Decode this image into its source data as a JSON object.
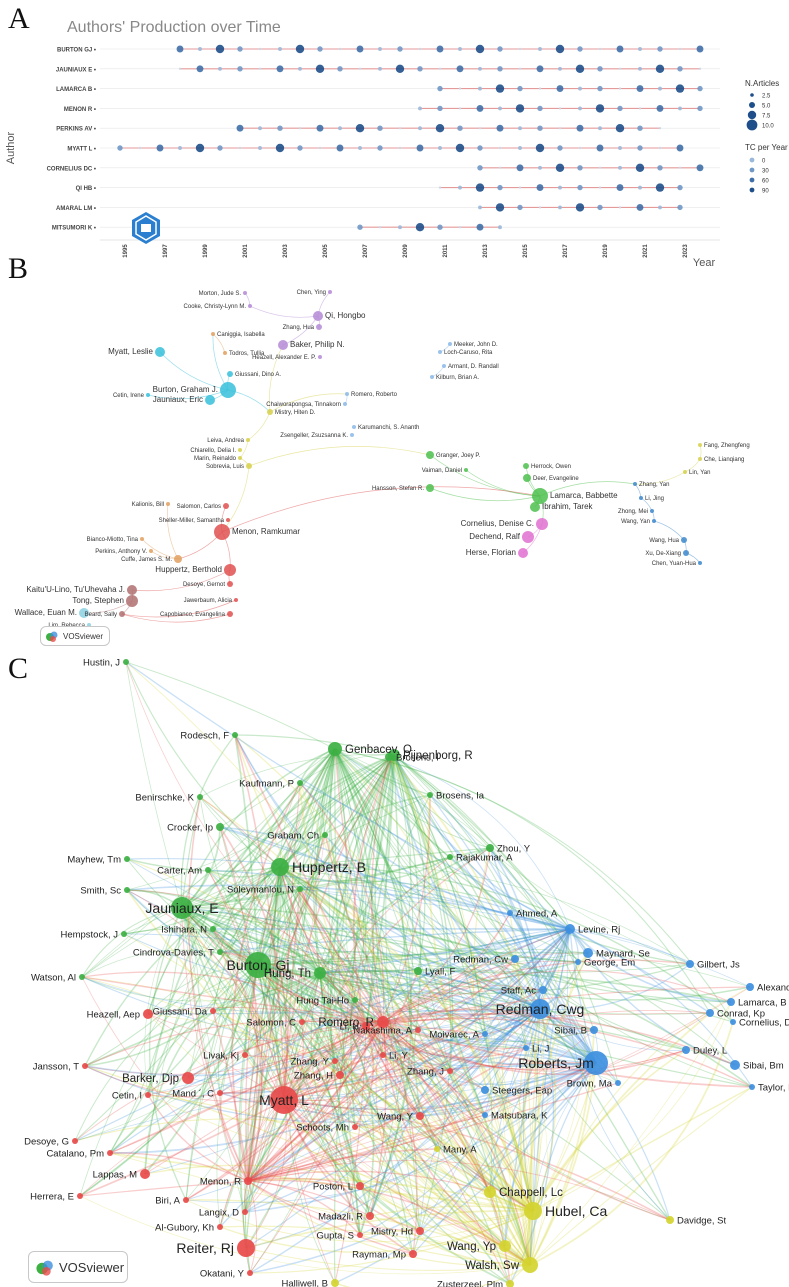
{
  "panels": {
    "a": "A",
    "b": "B",
    "c": "C"
  },
  "panel_a": {
    "title": "Authors' Production over Time",
    "ylabel": "Author",
    "xlabel": "Year",
    "legend_size_title": "N.Articles",
    "legend_size_values": [
      "2.5",
      "5.0",
      "7.5",
      "10.0"
    ],
    "legend_tc_title": "TC per Year",
    "legend_tc_values": [
      "0",
      "30",
      "60",
      "90"
    ],
    "x_ticks": [
      "1995",
      "1997",
      "1999",
      "2001",
      "2003",
      "2005",
      "2007",
      "2009",
      "2011",
      "2013",
      "2015",
      "2017",
      "2019",
      "2021",
      "2023"
    ],
    "authors": [
      {
        "name": "BURTON GJ •",
        "start": 1998,
        "end": 2024
      },
      {
        "name": "JAUNIAUX E •",
        "start": 1998,
        "end": 2024
      },
      {
        "name": "LAMARCA B •",
        "start": 2011,
        "end": 2024
      },
      {
        "name": "MENON R •",
        "start": 2010,
        "end": 2024
      },
      {
        "name": "PERKINS AV •",
        "start": 2001,
        "end": 2022
      },
      {
        "name": "MYATT L •",
        "start": 1995,
        "end": 2023
      },
      {
        "name": "CORNELIUS DC •",
        "start": 2013,
        "end": 2024
      },
      {
        "name": "QI HB •",
        "start": 2011,
        "end": 2023
      },
      {
        "name": "AMARAL LM •",
        "start": 2013,
        "end": 2023
      },
      {
        "name": "MITSUMORI K •",
        "start": 2007,
        "end": 2014
      }
    ]
  },
  "panel_b": {
    "logo_text": "VOSviewer",
    "nodes": [
      {
        "label": "Chen, Ying",
        "color": "#b48ad6"
      },
      {
        "label": "Morton, Jude S.",
        "color": "#b48ad6"
      },
      {
        "label": "Cooke, Christy-Lynn M.",
        "color": "#b48ad6"
      },
      {
        "label": "Qi, Hongbo",
        "color": "#b48ad6"
      },
      {
        "label": "Zhang, Hua",
        "color": "#b48ad6"
      },
      {
        "label": "Caniggia, Isabella",
        "color": "#e0a060"
      },
      {
        "label": "Baker, Philip N.",
        "color": "#b48ad6"
      },
      {
        "label": "Myatt, Leslie",
        "color": "#36c0da"
      },
      {
        "label": "Todros, Tullia",
        "color": "#e0a060"
      },
      {
        "label": "Heazell, Alexander E. P.",
        "color": "#b48ad6"
      },
      {
        "label": "Meeker, John D.",
        "color": "#8ab8e8"
      },
      {
        "label": "Loch-Caruso, Rita",
        "color": "#8ab8e8"
      },
      {
        "label": "Giussani, Dino A.",
        "color": "#36c0da"
      },
      {
        "label": "Burton, Graham J.",
        "color": "#36c0da"
      },
      {
        "label": "Armant, D. Randall",
        "color": "#8ab8e8"
      },
      {
        "label": "Kilburn, Brian A.",
        "color": "#8ab8e8"
      },
      {
        "label": "Cetin, Irene",
        "color": "#36c0da"
      },
      {
        "label": "Jauniaux, Eric",
        "color": "#36c0da"
      },
      {
        "label": "Romero, Roberto",
        "color": "#8ab8e8"
      },
      {
        "label": "Chaiworapongsa, Tinnakorn",
        "color": "#8ab8e8"
      },
      {
        "label": "Mistry, Hiten D.",
        "color": "#d6d04a"
      },
      {
        "label": "Karumanchi, S. Ananth",
        "color": "#8ab8e8"
      },
      {
        "label": "Zsengeller, Zsuzsanna K.",
        "color": "#8ab8e8"
      },
      {
        "label": "Leiva, Andrea",
        "color": "#d6d04a"
      },
      {
        "label": "Chiarello, Delia I.",
        "color": "#d6d04a"
      },
      {
        "label": "Marin, Reinaldo",
        "color": "#d6d04a"
      },
      {
        "label": "Sobrevia, Luis",
        "color": "#d6d04a"
      },
      {
        "label": "Granger, Joey P.",
        "color": "#4cbf4c"
      },
      {
        "label": "Vaiman, Daniel",
        "color": "#4cbf4c"
      },
      {
        "label": "Herrock, Owen",
        "color": "#4cbf4c"
      },
      {
        "label": "Deer, Evangeline",
        "color": "#4cbf4c"
      },
      {
        "label": "Fang, Zhengfeng",
        "color": "#d6d04a"
      },
      {
        "label": "Che, Lianqiang",
        "color": "#d6d04a"
      },
      {
        "label": "Lin, Yan",
        "color": "#d6d04a"
      },
      {
        "label": "Hansson, Stefan R.",
        "color": "#4cbf4c"
      },
      {
        "label": "Lamarca, Babbette",
        "color": "#4cbf4c"
      },
      {
        "label": "Ibrahim, Tarek",
        "color": "#4cbf4c"
      },
      {
        "label": "Zhang, Yan",
        "color": "#3d88cc"
      },
      {
        "label": "Li, Jing",
        "color": "#3d88cc"
      },
      {
        "label": "Kalionis, Bill",
        "color": "#e0a060"
      },
      {
        "label": "Salomon, Carlos",
        "color": "#e05050"
      },
      {
        "label": "Sheller-Miller, Samantha",
        "color": "#e05050"
      },
      {
        "label": "Menon, Ramkumar",
        "color": "#e05050"
      },
      {
        "label": "Cornelius, Denise C.",
        "color": "#e070d0"
      },
      {
        "label": "Zhong, Mei",
        "color": "#3d88cc"
      },
      {
        "label": "Wang, Yan",
        "color": "#3d88cc"
      },
      {
        "label": "Bianco-Miotto, Tina",
        "color": "#e0a060"
      },
      {
        "label": "Perkins, Anthony V.",
        "color": "#e0a060"
      },
      {
        "label": "Cuffe, James S. M.",
        "color": "#e0a060"
      },
      {
        "label": "Dechend, Ralf",
        "color": "#e070d0"
      },
      {
        "label": "Herse, Florian",
        "color": "#e070d0"
      },
      {
        "label": "Huppertz, Berthold",
        "color": "#e05050"
      },
      {
        "label": "Desoye, Gernot",
        "color": "#e05050"
      },
      {
        "label": "Wang, Hua",
        "color": "#3d88cc"
      },
      {
        "label": "Xu, De-Xiang",
        "color": "#3d88cc"
      },
      {
        "label": "Chen, Yuan-Hua",
        "color": "#3d88cc"
      },
      {
        "label": "Kaitu'U-Lino, Tu'Uhevaha J.",
        "color": "#b07070"
      },
      {
        "label": "Jawerbaum, Alicia",
        "color": "#e05050"
      },
      {
        "label": "Tong, Stephen",
        "color": "#b07070"
      },
      {
        "label": "Wallace, Euan M.",
        "color": "#8ad0e0"
      },
      {
        "label": "Beard, Sally",
        "color": "#b07070"
      },
      {
        "label": "Capobianco, Evangelina",
        "color": "#e05050"
      },
      {
        "label": "Lim, Rebecca",
        "color": "#8ad0e0"
      }
    ]
  },
  "panel_c": {
    "logo_text": "VOSviewer",
    "nodes": [
      {
        "label": "Hustin, J",
        "color": "#3cb043"
      },
      {
        "label": "Pijnenborg, R",
        "color": "#3cb043"
      },
      {
        "label": "Rodesch, F",
        "color": "#3cb043"
      },
      {
        "label": "Genbacev, O",
        "color": "#3cb043"
      },
      {
        "label": "Brosens, I",
        "color": "#3cb043"
      },
      {
        "label": "Brosens, Ia",
        "color": "#3cb043"
      },
      {
        "label": "Kaufmann, P",
        "color": "#3cb043"
      },
      {
        "label": "Benirschke, K",
        "color": "#3cb043"
      },
      {
        "label": "Crocker, Ip",
        "color": "#3cb043"
      },
      {
        "label": "Graham, Ch",
        "color": "#3cb043"
      },
      {
        "label": "Zhou, Y",
        "color": "#3cb043"
      },
      {
        "label": "Rajakumar, A",
        "color": "#3cb043"
      },
      {
        "label": "Mayhew, Tm",
        "color": "#3cb043"
      },
      {
        "label": "Carter, Am",
        "color": "#3cb043"
      },
      {
        "label": "Huppertz, B",
        "color": "#3cb043"
      },
      {
        "label": "Smith, Sc",
        "color": "#3cb043"
      },
      {
        "label": "Soleymanlou, N",
        "color": "#3cb043"
      },
      {
        "label": "Ahmed, A",
        "color": "#3d8fe0"
      },
      {
        "label": "Jauniaux, E",
        "color": "#3cb043"
      },
      {
        "label": "Levine, Rj",
        "color": "#3d8fe0"
      },
      {
        "label": "Ishihara, N",
        "color": "#3cb043"
      },
      {
        "label": "Hempstock, J",
        "color": "#3cb043"
      },
      {
        "label": "Maynard, Se",
        "color": "#3d8fe0"
      },
      {
        "label": "Cindrova-Davies, T",
        "color": "#3cb043"
      },
      {
        "label": "Watson, Al",
        "color": "#3cb043"
      },
      {
        "label": "Hung, Th",
        "color": "#3cb043"
      },
      {
        "label": "Lyall, F",
        "color": "#3cb043"
      },
      {
        "label": "Redman, Cw",
        "color": "#3d8fe0"
      },
      {
        "label": "George, Em",
        "color": "#3d8fe0"
      },
      {
        "label": "Burton, Gj",
        "color": "#3cb043"
      },
      {
        "label": "Gilbert, Js",
        "color": "#3d8fe0"
      },
      {
        "label": "Alexander, Bt",
        "color": "#3d8fe0"
      },
      {
        "label": "Staff, Ac",
        "color": "#3d8fe0"
      },
      {
        "label": "Redman, Cwg",
        "color": "#3d8fe0"
      },
      {
        "label": "Heazell, Aep",
        "color": "#e84a4a"
      },
      {
        "label": "Hung Tai-Ho",
        "color": "#3cb043"
      },
      {
        "label": "Lamarca, B",
        "color": "#3d8fe0"
      },
      {
        "label": "Conrad, Kp",
        "color": "#3d8fe0"
      },
      {
        "label": "Giussani, Da",
        "color": "#e84a4a"
      },
      {
        "label": "Salomon, C",
        "color": "#e84a4a"
      },
      {
        "label": "Sibai, B",
        "color": "#3d8fe0"
      },
      {
        "label": "Li, H",
        "color": "#e84a4a"
      },
      {
        "label": "Romero, R",
        "color": "#e84a4a"
      },
      {
        "label": "Nakashima, A",
        "color": "#e84a4a"
      },
      {
        "label": "Cornelius, Dc",
        "color": "#3d8fe0"
      },
      {
        "label": "Li, Y",
        "color": "#e84a4a"
      },
      {
        "label": "Moivarec, A",
        "color": "#3d8fe0"
      },
      {
        "label": "Livak, Kj",
        "color": "#e84a4a"
      },
      {
        "label": "Li, J",
        "color": "#3d8fe0"
      },
      {
        "label": "Duley, L",
        "color": "#3d8fe0"
      },
      {
        "label": "Zhang, Y",
        "color": "#e84a4a"
      },
      {
        "label": "Jansson, T",
        "color": "#e84a4a"
      },
      {
        "label": "Sibai, Bm",
        "color": "#3d8fe0"
      },
      {
        "label": "Zhang, H",
        "color": "#e84a4a"
      },
      {
        "label": "Roberts, Jm",
        "color": "#3d8fe0"
      },
      {
        "label": "Barker, Djp",
        "color": "#e84a4a"
      },
      {
        "label": "Zhang, J",
        "color": "#e84a4a"
      },
      {
        "label": "Taylor, Rn",
        "color": "#3d8fe0"
      },
      {
        "label": "Brown, Ma",
        "color": "#3d8fe0"
      },
      {
        "label": "Mand ´, C",
        "color": "#e84a4a"
      },
      {
        "label": "Myatt, L",
        "color": "#e84a4a"
      },
      {
        "label": "Steegers, Eap",
        "color": "#3d8fe0"
      },
      {
        "label": "Cetin, I",
        "color": "#e84a4a"
      },
      {
        "label": "Wang, Y",
        "color": "#e84a4a"
      },
      {
        "label": "Matsubara, K",
        "color": "#3d8fe0"
      },
      {
        "label": "Schoots, Mh",
        "color": "#e84a4a"
      },
      {
        "label": "Desoye, G",
        "color": "#e84a4a"
      },
      {
        "label": "Catalano, Pm",
        "color": "#e84a4a"
      },
      {
        "label": "Many, A",
        "color": "#d4d430"
      },
      {
        "label": "Lappas, M",
        "color": "#e84a4a"
      },
      {
        "label": "Menon, R",
        "color": "#e84a4a"
      },
      {
        "label": "Poston, L",
        "color": "#e84a4a"
      },
      {
        "label": "Herrera, E",
        "color": "#e84a4a"
      },
      {
        "label": "Chappell, Lc",
        "color": "#d4d430"
      },
      {
        "label": "Biri, A",
        "color": "#e84a4a"
      },
      {
        "label": "Hubel, Ca",
        "color": "#d4d430"
      },
      {
        "label": "Davidge, St",
        "color": "#d4d430"
      },
      {
        "label": "Langix, D",
        "color": "#e84a4a"
      },
      {
        "label": "Madazli, R",
        "color": "#e84a4a"
      },
      {
        "label": "Al-Gubory, Kh",
        "color": "#e84a4a"
      },
      {
        "label": "Mistry, Hd",
        "color": "#e84a4a"
      },
      {
        "label": "Gupta, S",
        "color": "#e84a4a"
      },
      {
        "label": "Wang, Yp",
        "color": "#d4d430"
      },
      {
        "label": "Reiter, Rj",
        "color": "#e84a4a"
      },
      {
        "label": "Rayman, Mp",
        "color": "#e84a4a"
      },
      {
        "label": "Walsh, Sw",
        "color": "#d4d430"
      },
      {
        "label": "Okatani, Y",
        "color": "#e84a4a"
      },
      {
        "label": "Zusterzeel, Plm",
        "color": "#d4d430"
      },
      {
        "label": "Halliwell, B",
        "color": "#d4d430"
      }
    ]
  }
}
